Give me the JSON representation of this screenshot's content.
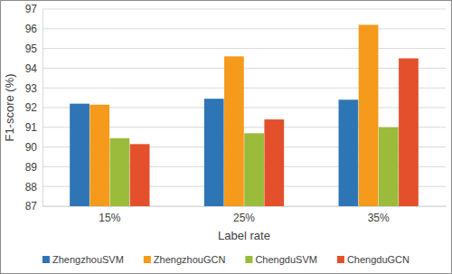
{
  "chart_data": {
    "type": "bar",
    "x_label": "Label rate",
    "y_label": "F1-score (%)",
    "categories": [
      "15%",
      "25%",
      "35%"
    ],
    "series": [
      {
        "name": "ZhengzhouSVM",
        "color": "#2e75b6",
        "values": [
          92.2,
          92.45,
          92.4
        ]
      },
      {
        "name": "ZhengzhouGCN",
        "color": "#f59a1b",
        "values": [
          92.15,
          94.6,
          96.2
        ]
      },
      {
        "name": "ChengduSVM",
        "color": "#9bbb3b",
        "values": [
          90.45,
          90.7,
          91.0
        ]
      },
      {
        "name": "ChengduGCN",
        "color": "#e4502c",
        "values": [
          90.15,
          91.4,
          94.5
        ]
      }
    ],
    "ylim": [
      87,
      97
    ],
    "yticks": [
      87,
      88,
      89,
      90,
      91,
      92,
      93,
      94,
      95,
      96,
      97
    ],
    "grid": true,
    "legend": "bottom"
  }
}
